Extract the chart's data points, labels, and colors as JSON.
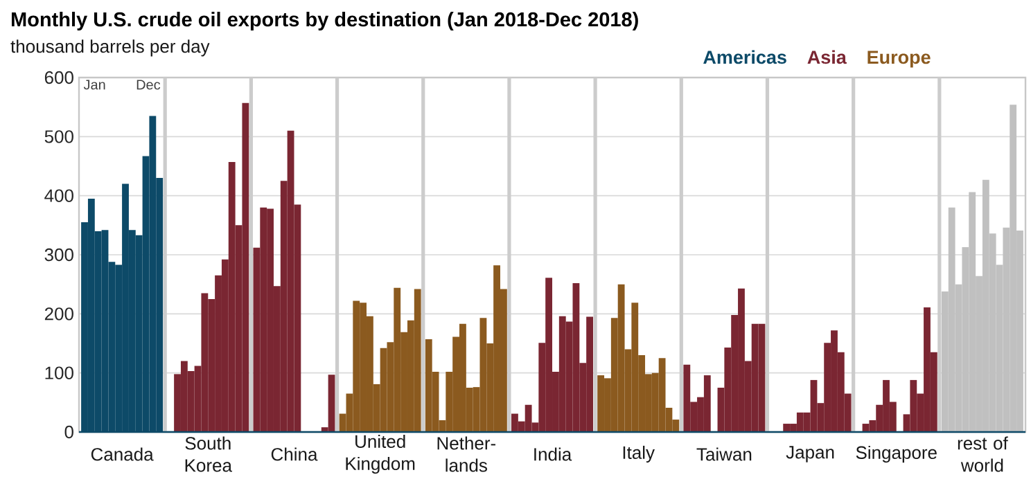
{
  "chart_data": {
    "type": "bar",
    "title": "Monthly U.S. crude oil exports by destination (Jan 2018-Dec 2018)",
    "ylabel": "thousand barrels per day",
    "categories": [
      "Canada",
      "South Korea",
      "China",
      "United Kingdom",
      "Nether-lands",
      "India",
      "Italy",
      "Taiwan",
      "Japan",
      "Singapore",
      "rest of world"
    ],
    "annotations": [
      "Jan",
      "Dec",
      "Americas",
      "Asia",
      "Europe"
    ],
    "ylim": [
      0,
      600
    ],
    "yticks": [
      0,
      100,
      200,
      300,
      400,
      500,
      600
    ],
    "grid": "y",
    "series": [
      {
        "colors": [
          "#0d4a68",
          "#7a2632",
          "#7a2632",
          "#8b5a1f",
          "#8b5a1f",
          "#7a2632",
          "#8b5a1f",
          "#7a2632",
          "#7a2632",
          "#7a2632",
          "#c0c0c0"
        ],
        "values": [
          355,
          0,
          312,
          31,
          157,
          31,
          96,
          114,
          0,
          0,
          238
        ]
      },
      {
        "colors": [
          "#0d4a68",
          "#7a2632",
          "#7a2632",
          "#8b5a1f",
          "#8b5a1f",
          "#7a2632",
          "#8b5a1f",
          "#7a2632",
          "#7a2632",
          "#7a2632",
          "#c0c0c0"
        ],
        "values": [
          395,
          98,
          380,
          65,
          102,
          18,
          91,
          51,
          0,
          14,
          380
        ]
      },
      {
        "colors": [
          "#0d4a68",
          "#7a2632",
          "#7a2632",
          "#8b5a1f",
          "#8b5a1f",
          "#7a2632",
          "#8b5a1f",
          "#7a2632",
          "#7a2632",
          "#7a2632",
          "#c0c0c0"
        ],
        "values": [
          340,
          120,
          378,
          222,
          20,
          46,
          193,
          59,
          14,
          20,
          250
        ]
      },
      {
        "colors": [
          "#0d4a68",
          "#7a2632",
          "#7a2632",
          "#8b5a1f",
          "#8b5a1f",
          "#7a2632",
          "#8b5a1f",
          "#7a2632",
          "#7a2632",
          "#7a2632",
          "#c0c0c0"
        ],
        "values": [
          342,
          103,
          247,
          219,
          102,
          16,
          250,
          96,
          14,
          46,
          313
        ]
      },
      {
        "colors": [
          "#0d4a68",
          "#7a2632",
          "#7a2632",
          "#8b5a1f",
          "#8b5a1f",
          "#7a2632",
          "#8b5a1f",
          "#7a2632",
          "#7a2632",
          "#7a2632",
          "#c0c0c0"
        ],
        "values": [
          288,
          112,
          425,
          196,
          161,
          151,
          140,
          0,
          33,
          88,
          406
        ]
      },
      {
        "colors": [
          "#0d4a68",
          "#7a2632",
          "#7a2632",
          "#8b5a1f",
          "#8b5a1f",
          "#7a2632",
          "#8b5a1f",
          "#7a2632",
          "#7a2632",
          "#7a2632",
          "#c0c0c0"
        ],
        "values": [
          283,
          235,
          510,
          81,
          183,
          261,
          219,
          75,
          33,
          51,
          264
        ]
      },
      {
        "colors": [
          "#0d4a68",
          "#7a2632",
          "#7a2632",
          "#8b5a1f",
          "#8b5a1f",
          "#7a2632",
          "#8b5a1f",
          "#7a2632",
          "#7a2632",
          "#7a2632",
          "#c0c0c0"
        ],
        "values": [
          420,
          225,
          385,
          142,
          75,
          102,
          130,
          143,
          88,
          0,
          427
        ]
      },
      {
        "colors": [
          "#0d4a68",
          "#7a2632",
          "#7a2632",
          "#8b5a1f",
          "#8b5a1f",
          "#7a2632",
          "#8b5a1f",
          "#7a2632",
          "#7a2632",
          "#7a2632",
          "#c0c0c0"
        ],
        "values": [
          342,
          265,
          0,
          152,
          76,
          196,
          98,
          198,
          49,
          30,
          336
        ]
      },
      {
        "colors": [
          "#0d4a68",
          "#7a2632",
          "#7a2632",
          "#8b5a1f",
          "#8b5a1f",
          "#7a2632",
          "#8b5a1f",
          "#7a2632",
          "#7a2632",
          "#7a2632",
          "#c0c0c0"
        ],
        "values": [
          333,
          292,
          0,
          244,
          193,
          187,
          100,
          243,
          151,
          88,
          283
        ]
      },
      {
        "colors": [
          "#0d4a68",
          "#7a2632",
          "#7a2632",
          "#8b5a1f",
          "#8b5a1f",
          "#7a2632",
          "#8b5a1f",
          "#7a2632",
          "#7a2632",
          "#7a2632",
          "#c0c0c0"
        ],
        "values": [
          467,
          457,
          0,
          169,
          150,
          252,
          125,
          120,
          172,
          65,
          346
        ]
      },
      {
        "colors": [
          "#0d4a68",
          "#7a2632",
          "#7a2632",
          "#8b5a1f",
          "#8b5a1f",
          "#7a2632",
          "#8b5a1f",
          "#7a2632",
          "#7a2632",
          "#7a2632",
          "#c0c0c0"
        ],
        "values": [
          535,
          350,
          8,
          189,
          282,
          117,
          41,
          183,
          135,
          211,
          554
        ]
      },
      {
        "colors": [
          "#0d4a68",
          "#7a2632",
          "#7a2632",
          "#8b5a1f",
          "#8b5a1f",
          "#7a2632",
          "#8b5a1f",
          "#7a2632",
          "#7a2632",
          "#7a2632",
          "#c0c0c0"
        ],
        "values": [
          430,
          557,
          97,
          242,
          242,
          195,
          21,
          183,
          65,
          135,
          341
        ]
      }
    ]
  }
}
